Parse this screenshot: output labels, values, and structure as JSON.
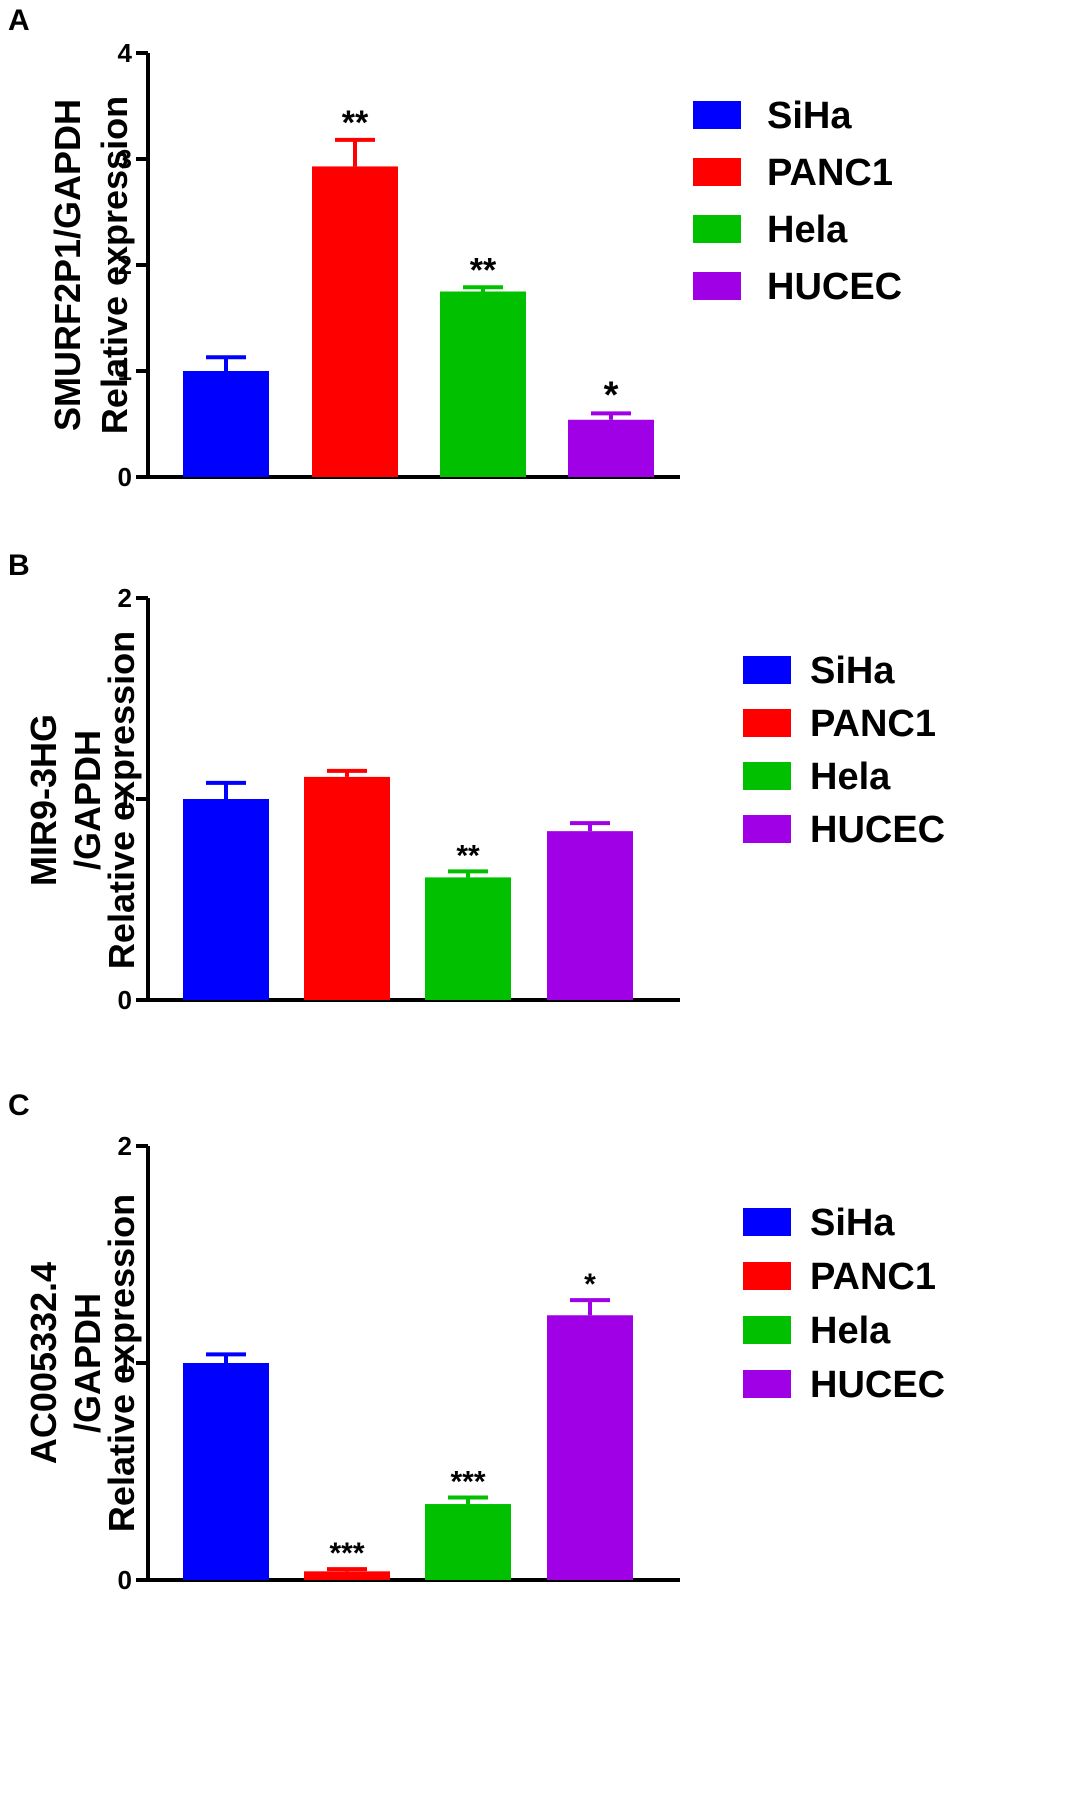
{
  "chart_data": [
    {
      "type": "bar",
      "panel": "A",
      "ylabel_lines": [
        "SMURF2P1/GAPDH",
        "Relative expression"
      ],
      "ylim": [
        0,
        4
      ],
      "yticks": [
        0,
        1,
        2,
        3,
        4
      ],
      "categories": [
        "SiHa",
        "PANC1",
        "Hela",
        "HUCEC"
      ],
      "values": [
        1.0,
        2.93,
        1.75,
        0.54
      ],
      "errors": [
        0.13,
        0.25,
        0.04,
        0.06
      ],
      "significance": [
        "",
        "**",
        "**",
        "*"
      ],
      "legend": [
        "SiHa",
        "PANC1",
        "Hela",
        "HUCEC"
      ],
      "legend_position": "right"
    },
    {
      "type": "bar",
      "panel": "B",
      "ylabel_lines": [
        "MIR9-3HG",
        "/GAPDH",
        "Relative expression"
      ],
      "ylim": [
        0,
        2
      ],
      "yticks": [
        0,
        1,
        2
      ],
      "categories": [
        "SiHa",
        "PANC1",
        "Hela",
        "HUCEC"
      ],
      "values": [
        1.0,
        1.11,
        0.61,
        0.84
      ],
      "errors": [
        0.08,
        0.03,
        0.03,
        0.04
      ],
      "significance": [
        "",
        "",
        "**",
        ""
      ],
      "legend": [
        "SiHa",
        "PANC1",
        "Hela",
        "HUCEC"
      ],
      "legend_position": "right"
    },
    {
      "type": "bar",
      "panel": "C",
      "ylabel_lines": [
        "AC005332.4",
        "/GAPDH",
        "Relative expression"
      ],
      "ylim": [
        0,
        2
      ],
      "yticks": [
        0,
        1,
        2
      ],
      "categories": [
        "SiHa",
        "PANC1",
        "Hela",
        "HUCEC"
      ],
      "values": [
        1.0,
        0.04,
        0.35,
        1.22
      ],
      "errors": [
        0.04,
        0.01,
        0.03,
        0.07
      ],
      "significance": [
        "",
        "***",
        "***",
        "*"
      ],
      "legend": [
        "SiHa",
        "PANC1",
        "Hela",
        "HUCEC"
      ],
      "legend_position": "right"
    }
  ],
  "colors": {
    "SiHa": "#0000ff",
    "PANC1": "#ff0000",
    "Hela": "#00c000",
    "HUCEC": "#a000e6"
  }
}
